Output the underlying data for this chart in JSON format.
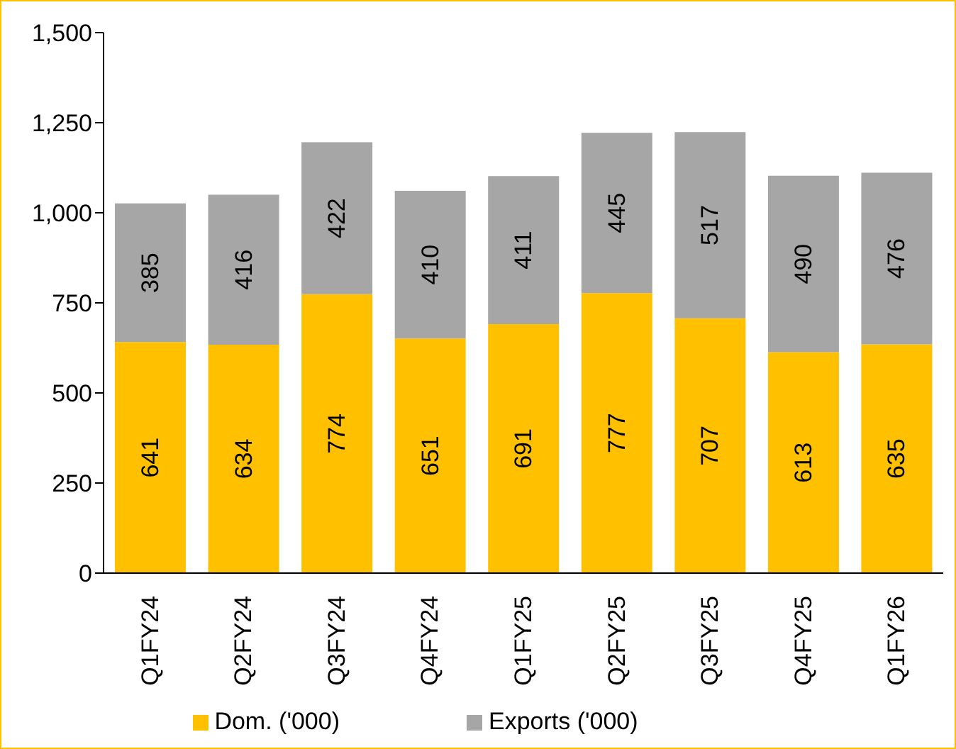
{
  "chart_data": {
    "type": "bar",
    "stacked": true,
    "data_labels": true,
    "categories": [
      "Q1FY24",
      "Q2FY24",
      "Q3FY24",
      "Q4FY24",
      "Q1FY25",
      "Q2FY25",
      "Q3FY25",
      "Q4FY25",
      "Q1FY26"
    ],
    "series": [
      {
        "name": "Dom. ('000)",
        "color": "#ffc000",
        "values": [
          641,
          634,
          774,
          651,
          691,
          777,
          707,
          613,
          635
        ]
      },
      {
        "name": "Exports ('000)",
        "color": "#a6a6a6",
        "values": [
          385,
          416,
          422,
          410,
          411,
          445,
          517,
          490,
          476
        ]
      }
    ],
    "ylim": [
      0,
      1500
    ],
    "yticks": [
      0,
      250,
      500,
      750,
      {
        "value": 1000,
        "label": "1,000"
      },
      {
        "value": 1250,
        "label": "1,250"
      },
      {
        "value": 1500,
        "label": "1,500"
      }
    ],
    "grid": false,
    "legend": "bottom"
  }
}
